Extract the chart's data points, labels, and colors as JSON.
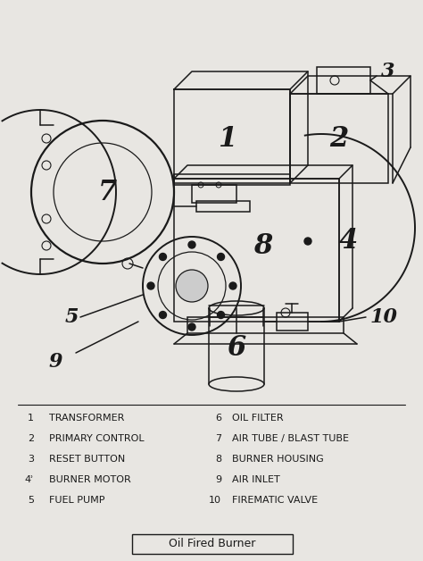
{
  "title": "Oil Fired Burner",
  "bg_color": "#e8e6e2",
  "draw_color": "#1a1a1a",
  "legend_items_left": [
    [
      "1",
      "TRANSFORMER"
    ],
    [
      "2",
      "PRIMARY CONTROL"
    ],
    [
      "3",
      "RESET BUTTON"
    ],
    [
      "4ʾ",
      "BURNER MOTOR"
    ],
    [
      "5",
      "FUEL PUMP"
    ]
  ],
  "legend_items_right": [
    [
      "6",
      "OIL FILTER"
    ],
    [
      "7",
      "AIR TUBE / BLAST TUBE"
    ],
    [
      "8",
      "BURNER HOUSING"
    ],
    [
      "9",
      "AIR INLET"
    ],
    [
      "10",
      "FIREMATIC VALVE"
    ]
  ]
}
